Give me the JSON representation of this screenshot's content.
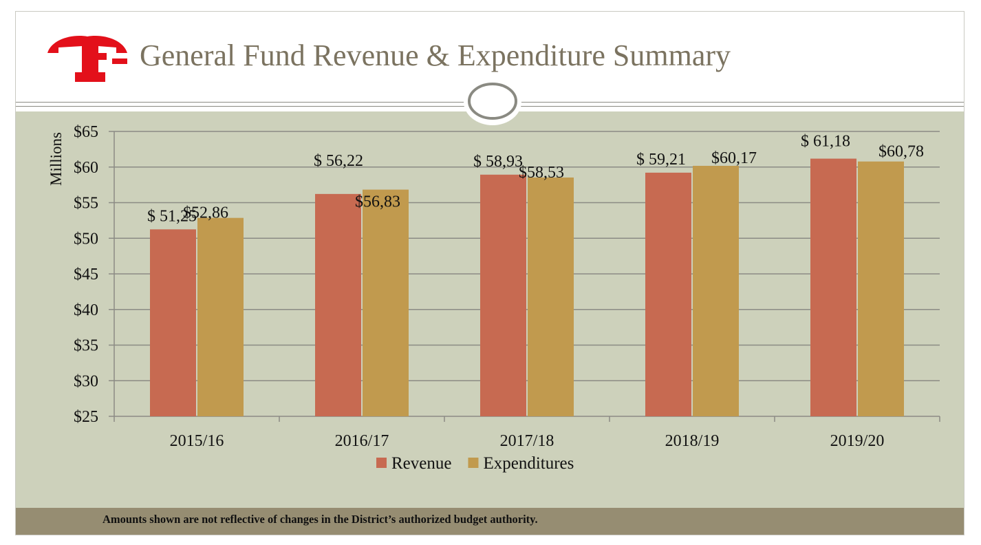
{
  "title": "General Fund Revenue & Expenditure Summary",
  "footnote": "Amounts shown are not reflective of changes in the District’s authorized budget authority.",
  "logo": {
    "letter": "F",
    "color": "#e3101a"
  },
  "colors": {
    "revenue": "#c76a51",
    "expenditures": "#c19a4e",
    "band": "#cdd1bb",
    "footer": "#968d72",
    "gridline": "#8b8b84",
    "title": "#7b7360"
  },
  "chart_data": {
    "type": "bar",
    "title": "General Fund Revenue & Expenditure Summary",
    "xlabel": "",
    "ylabel": "Millions",
    "ylim": [
      25,
      65
    ],
    "yticks": [
      25,
      30,
      35,
      40,
      45,
      50,
      55,
      60,
      65
    ],
    "ytick_labels": [
      "$25",
      "$30",
      "$35",
      "$40",
      "$45",
      "$50",
      "$55",
      "$60",
      "$65"
    ],
    "grid": true,
    "legend": "bottom-center",
    "categories": [
      "2015/16",
      "2016/17",
      "2017/18",
      "2018/19",
      "2019/20"
    ],
    "series": [
      {
        "name": "Revenue",
        "values": [
          51.25,
          56.22,
          58.93,
          59.21,
          61.18
        ],
        "labels": [
          "$ 51,25",
          "$ 56,22",
          "$ 58,93",
          "$ 59,21",
          "$ 61,18"
        ]
      },
      {
        "name": "Expenditures",
        "values": [
          52.86,
          56.83,
          58.53,
          60.17,
          60.78
        ],
        "labels": [
          "$52,86",
          "$56,83",
          "$58,53",
          "$60,17",
          "$60,78"
        ]
      }
    ]
  }
}
